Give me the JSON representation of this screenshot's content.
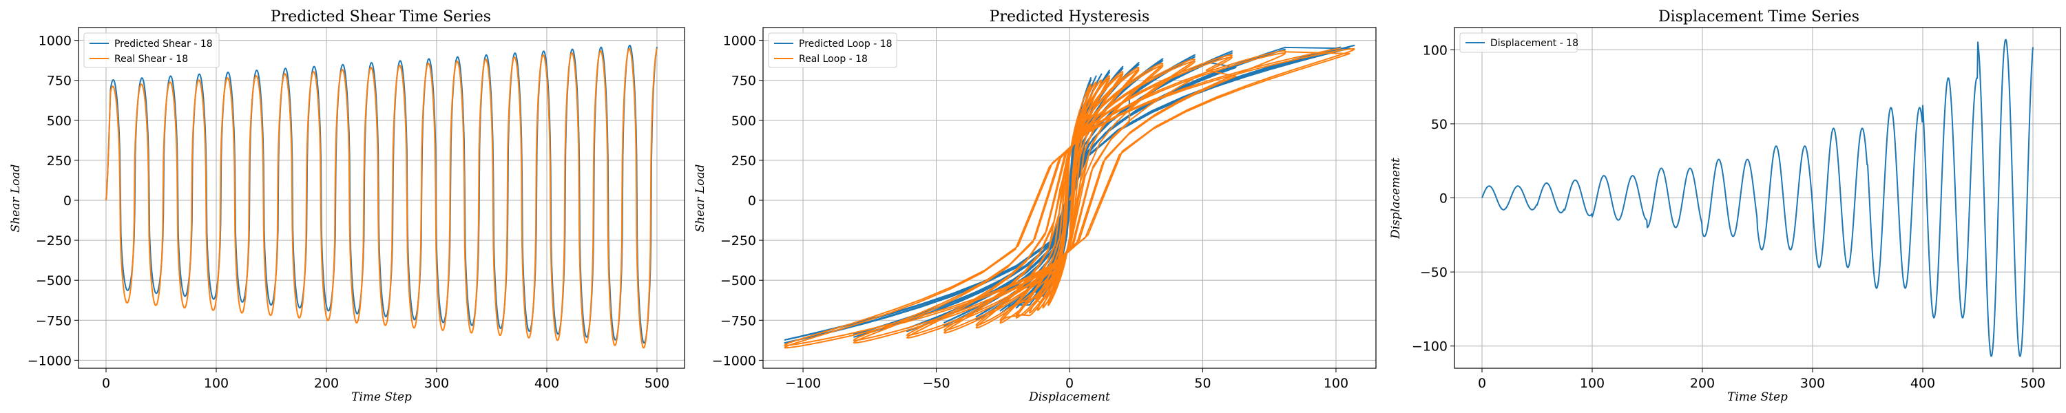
{
  "colors": {
    "blue": "#1f77b4",
    "orange": "#ff7f0e"
  },
  "chart_data": [
    {
      "type": "line",
      "title": "Predicted Shear Time Series",
      "xlabel": "Time Step",
      "ylabel": "Shear Load",
      "xlim": [
        -25,
        525
      ],
      "ylim": [
        -1050,
        1080
      ],
      "xticks": [
        0,
        100,
        200,
        300,
        400,
        500
      ],
      "yticks": [
        -1000,
        -750,
        -500,
        -250,
        0,
        250,
        500,
        750,
        1000
      ],
      "grid": true,
      "legend_position": "top-left",
      "series": [
        {
          "name": "Predicted Shear - 18",
          "color": "#1f77b4",
          "x_range": [
            0,
            500
          ],
          "points": 1001,
          "cycles": 19.2,
          "pos_amp": [
            750,
            980
          ],
          "neg_amp": [
            -550,
            -900
          ],
          "lag": 0
        },
        {
          "name": "Real Shear - 18",
          "color": "#ff7f0e",
          "x_range": [
            0,
            500
          ],
          "points": 1001,
          "cycles": 19.2,
          "pos_amp": [
            710,
            960
          ],
          "neg_amp": [
            -630,
            -930
          ],
          "lag": 0.7
        }
      ]
    },
    {
      "type": "line",
      "title": "Predicted Hysteresis",
      "xlabel": "Displacement",
      "ylabel": "Shear Load",
      "xlim": [
        -115,
        115
      ],
      "ylim": [
        -1050,
        1080
      ],
      "xticks": [
        -100,
        -50,
        0,
        50,
        100
      ],
      "yticks": [
        -1000,
        -750,
        -500,
        -250,
        0,
        250,
        500,
        750,
        1000
      ],
      "grid": true,
      "legend_position": "top-left",
      "series": [
        {
          "name": "Predicted Loop - 18",
          "color": "#1f77b4",
          "source": "x: displacement, y: predicted shear"
        },
        {
          "name": "Real Loop - 18",
          "color": "#ff7f0e",
          "source": "x: displacement, y: real shear"
        }
      ]
    },
    {
      "type": "line",
      "title": "Displacement Time Series",
      "xlabel": "Time Step",
      "ylabel": "Displacement",
      "xlim": [
        -25,
        525
      ],
      "ylim": [
        -115,
        115
      ],
      "xticks": [
        0,
        100,
        200,
        300,
        400,
        500
      ],
      "yticks": [
        -100,
        -50,
        0,
        50,
        100
      ],
      "grid": true,
      "legend_position": "top-left",
      "series": [
        {
          "name": "Displacement - 18",
          "color": "#1f77b4",
          "x_range": [
            0,
            500
          ],
          "points": 1001,
          "cycles": 19.2,
          "amplitude_levels": [
            8,
            8,
            10,
            12,
            15,
            15,
            20,
            20,
            26,
            26,
            35,
            35,
            47,
            47,
            61,
            61,
            81,
            81,
            107,
            107
          ]
        }
      ]
    }
  ]
}
